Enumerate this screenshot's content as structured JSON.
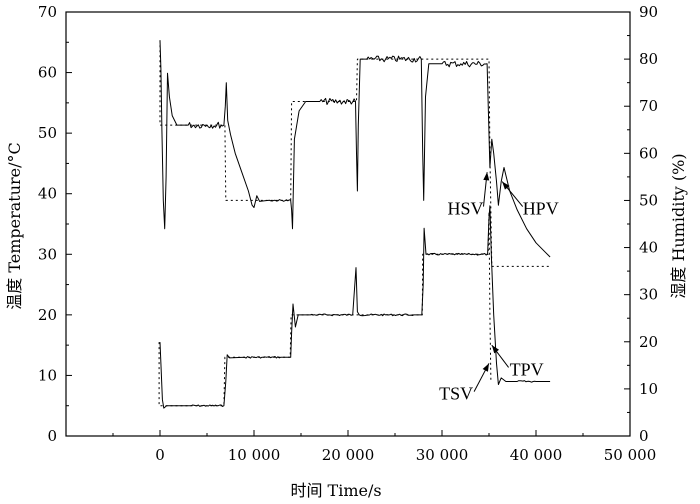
{
  "chart_data": {
    "type": "line",
    "title": "",
    "xlabel": "时间  Time/s",
    "ylabel_left": "温度  Temperature/°C",
    "ylabel_right": "湿度  Humidity (%)",
    "xlim": [
      -10000,
      50000
    ],
    "ylim_left": [
      0,
      70
    ],
    "ylim_right": [
      0,
      90
    ],
    "x_ticks": [
      0,
      10000,
      20000,
      30000,
      40000,
      50000
    ],
    "x_tick_labels": [
      "0",
      "10 000",
      "20 000",
      "30 000",
      "40 000",
      "50 000"
    ],
    "y_ticks_left": [
      0,
      10,
      20,
      30,
      40,
      50,
      60,
      70
    ],
    "y_ticks_right": [
      0,
      10,
      20,
      30,
      40,
      50,
      60,
      70,
      80,
      90
    ],
    "grid": false,
    "series": [
      {
        "axis": "left",
        "style": "solid",
        "points": [
          [
            0,
            15.5
          ],
          [
            100,
            12
          ],
          [
            250,
            6
          ],
          [
            400,
            4.6
          ],
          [
            700,
            5
          ],
          [
            1500,
            5
          ],
          [
            3000,
            5
          ],
          [
            5000,
            5
          ],
          [
            6800,
            5
          ],
          [
            7000,
            9
          ],
          [
            7150,
            13.4
          ],
          [
            7400,
            12.9
          ],
          [
            9000,
            13
          ],
          [
            11000,
            13
          ],
          [
            13000,
            13
          ],
          [
            13900,
            13
          ],
          [
            14000,
            17
          ],
          [
            14150,
            21.8
          ],
          [
            14400,
            18
          ],
          [
            14700,
            20
          ],
          [
            16000,
            20
          ],
          [
            18000,
            20
          ],
          [
            20500,
            20
          ],
          [
            20850,
            27.8
          ],
          [
            21000,
            20.5
          ],
          [
            21200,
            20
          ],
          [
            24000,
            20
          ],
          [
            27000,
            20
          ],
          [
            27850,
            20
          ],
          [
            28000,
            25
          ],
          [
            28100,
            34.3
          ],
          [
            28300,
            30
          ],
          [
            30000,
            30
          ],
          [
            33000,
            30
          ],
          [
            34850,
            30
          ],
          [
            35000,
            36
          ],
          [
            35100,
            38
          ],
          [
            35250,
            30
          ],
          [
            35500,
            20
          ],
          [
            35800,
            12
          ],
          [
            36000,
            8.5
          ],
          [
            36300,
            9.6
          ],
          [
            36800,
            9
          ],
          [
            38000,
            9
          ],
          [
            40000,
            9
          ],
          [
            41500,
            9
          ]
        ]
      },
      {
        "axis": "right",
        "style": "solid",
        "points": [
          [
            0,
            84
          ],
          [
            100,
            78
          ],
          [
            200,
            65
          ],
          [
            350,
            50
          ],
          [
            500,
            44
          ],
          [
            650,
            55
          ],
          [
            800,
            77
          ],
          [
            1000,
            72
          ],
          [
            1300,
            68
          ],
          [
            1800,
            66
          ],
          [
            3000,
            66
          ],
          [
            5000,
            66
          ],
          [
            6800,
            66
          ],
          [
            6950,
            70
          ],
          [
            7050,
            75
          ],
          [
            7200,
            67
          ],
          [
            7500,
            64
          ],
          [
            8000,
            60
          ],
          [
            8700,
            56
          ],
          [
            9400,
            52
          ],
          [
            9800,
            49
          ],
          [
            10000,
            48.5
          ],
          [
            10300,
            51
          ],
          [
            10600,
            49.8
          ],
          [
            11500,
            50
          ],
          [
            13900,
            50
          ],
          [
            14000,
            48
          ],
          [
            14100,
            44
          ],
          [
            14300,
            63
          ],
          [
            14800,
            69
          ],
          [
            15500,
            71
          ],
          [
            17000,
            71
          ],
          [
            19000,
            71
          ],
          [
            20800,
            71
          ],
          [
            20900,
            60
          ],
          [
            21000,
            52
          ],
          [
            21100,
            66
          ],
          [
            21300,
            80
          ],
          [
            22000,
            80
          ],
          [
            24000,
            80
          ],
          [
            27800,
            80
          ],
          [
            27950,
            60
          ],
          [
            28050,
            50
          ],
          [
            28250,
            72
          ],
          [
            28600,
            79
          ],
          [
            30000,
            79
          ],
          [
            32000,
            79
          ],
          [
            34800,
            79
          ],
          [
            34950,
            68
          ],
          [
            35100,
            57
          ],
          [
            35300,
            63
          ],
          [
            35500,
            60
          ],
          [
            35800,
            54
          ],
          [
            36000,
            49
          ],
          [
            36300,
            54
          ],
          [
            36600,
            57
          ],
          [
            37200,
            52
          ],
          [
            38000,
            48
          ],
          [
            39000,
            44
          ],
          [
            40000,
            41
          ],
          [
            41000,
            39
          ],
          [
            41500,
            38
          ]
        ]
      },
      {
        "axis": "left",
        "style": "dashed",
        "points": [
          [
            -100,
            15.5
          ],
          [
            -100,
            5
          ],
          [
            6800,
            5
          ],
          [
            6900,
            13
          ],
          [
            13850,
            13
          ],
          [
            13950,
            20
          ],
          [
            20950,
            20
          ],
          [
            27900,
            20
          ],
          [
            27950,
            30
          ],
          [
            34900,
            30
          ],
          [
            35000,
            37
          ],
          [
            35100,
            20
          ],
          [
            35200,
            9
          ]
        ]
      },
      {
        "axis": "right",
        "style": "dashed",
        "points": [
          [
            0,
            84
          ],
          [
            0,
            66
          ],
          [
            6900,
            66
          ],
          [
            7000,
            50
          ],
          [
            13900,
            50
          ],
          [
            14000,
            71
          ],
          [
            20900,
            71
          ],
          [
            21000,
            80
          ],
          [
            35000,
            80
          ],
          [
            35100,
            60
          ],
          [
            35300,
            36
          ],
          [
            41500,
            36
          ]
        ]
      }
    ],
    "annotations": [
      {
        "text": "HSV",
        "x": 32500,
        "y_right": 47
      },
      {
        "text": "HPV",
        "x": 40500,
        "y_right": 47
      },
      {
        "text": "TSV",
        "x": 31500,
        "y_left": 6
      },
      {
        "text": "TPV",
        "x": 39000,
        "y_left": 10
      }
    ]
  }
}
